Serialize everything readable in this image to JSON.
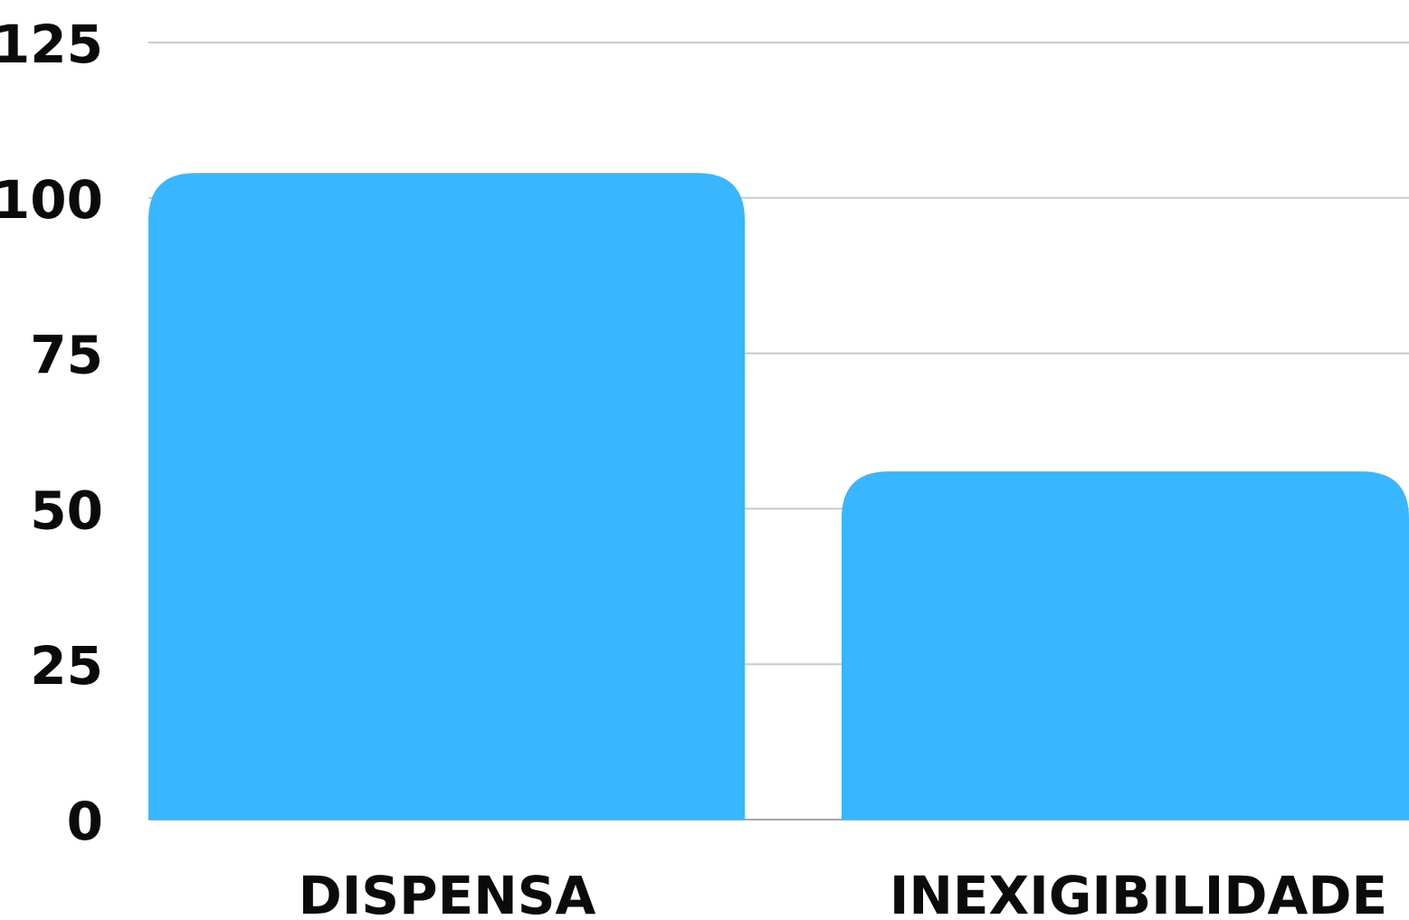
{
  "chart_data": {
    "type": "bar",
    "categories": [
      "DISPENSA",
      "INEXIGIBILIDADE"
    ],
    "values": [
      104,
      56
    ],
    "title": "",
    "xlabel": "",
    "ylabel": "",
    "ylim": [
      0,
      125
    ],
    "yticks": [
      0,
      25,
      50,
      75,
      100,
      125
    ],
    "grid": true,
    "bar_color": "#38b6ff"
  }
}
